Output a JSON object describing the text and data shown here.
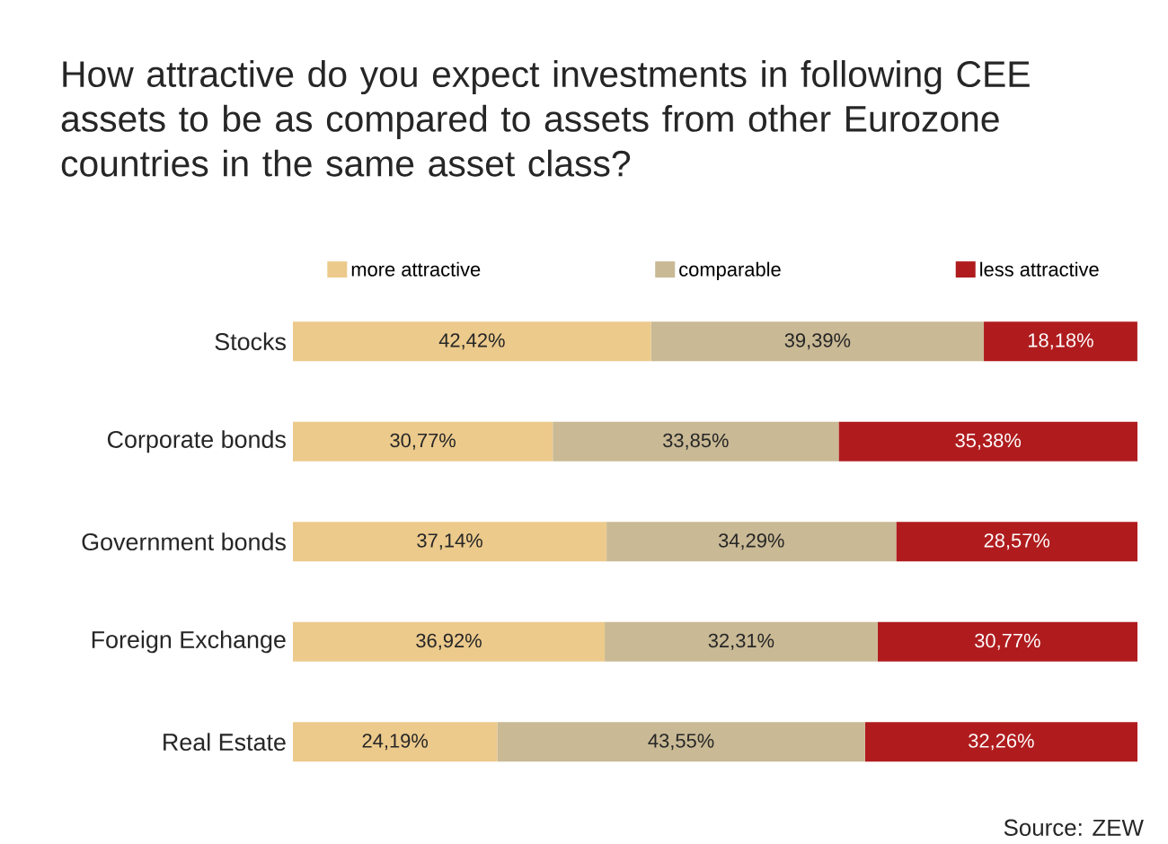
{
  "chart_data": {
    "type": "bar",
    "orientation": "horizontal",
    "stacked": true,
    "title": "How attractive do you expect investments in following CEE assets to be as compared to assets from other Eurozone countries in the same asset class?",
    "categories": [
      "Stocks",
      "Corporate bonds",
      "Government bonds",
      "Foreign Exchange",
      "Real Estate"
    ],
    "series": [
      {
        "name": "more attractive",
        "color": "#ecca8c",
        "values": [
          42.42,
          30.77,
          37.14,
          36.92,
          24.19
        ],
        "value_labels": [
          "42,42%",
          "30,77%",
          "37,14%",
          "36,92%",
          "24,19%"
        ]
      },
      {
        "name": "comparable",
        "color": "#c9b995",
        "values": [
          39.39,
          33.85,
          34.29,
          32.31,
          43.55
        ],
        "value_labels": [
          "39,39%",
          "33,85%",
          "34,29%",
          "32,31%",
          "43,55%"
        ]
      },
      {
        "name": "less attractive",
        "color": "#b01c1e",
        "values": [
          18.18,
          35.38,
          28.57,
          30.77,
          32.26
        ],
        "value_labels": [
          "18,18%",
          "35,38%",
          "28,57%",
          "30,77%",
          "32,26%"
        ]
      }
    ],
    "legend": "top",
    "grid": false,
    "annotations": [
      "Source: ZEW"
    ]
  }
}
